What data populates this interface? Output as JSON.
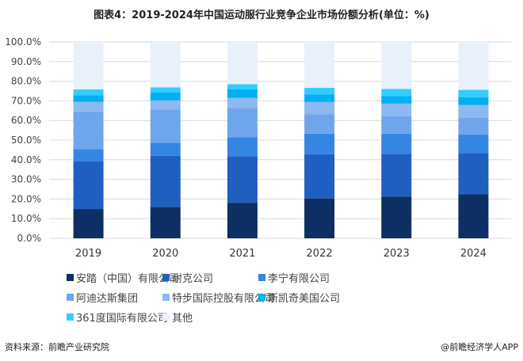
{
  "chart_data": {
    "type": "bar",
    "stacked": true,
    "title": "图表4：2019-2024年中国运动服行业竞争企业市场份额分析(单位：%)",
    "xlabel": "",
    "ylabel": "",
    "ylim": [
      0,
      100
    ],
    "yticks": [
      "0.0%",
      "10.0%",
      "20.0%",
      "30.0%",
      "40.0%",
      "50.0%",
      "60.0%",
      "70.0%",
      "80.0%",
      "90.0%",
      "100.0%"
    ],
    "grid": true,
    "legend_position": "bottom",
    "categories": [
      "2019",
      "2020",
      "2021",
      "2022",
      "2023",
      "2024"
    ],
    "series": [
      {
        "name": "安踏（中国）有限公司",
        "color": "#0d2f63",
        "values": [
          14.9,
          16.0,
          18.1,
          20.3,
          21.2,
          22.4
        ]
      },
      {
        "name": "耐克公司",
        "color": "#1e5fbf",
        "values": [
          24.2,
          26.0,
          23.6,
          22.5,
          21.8,
          21.0
        ]
      },
      {
        "name": "李宁有限公司",
        "color": "#3585e3",
        "values": [
          6.3,
          6.7,
          9.7,
          10.5,
          10.3,
          9.4
        ]
      },
      {
        "name": "阿迪达斯集团",
        "color": "#6fa6eb",
        "values": [
          19.2,
          16.8,
          15.0,
          9.8,
          8.8,
          8.5
        ]
      },
      {
        "name": "特步国际控股有限公司",
        "color": "#8db8f1",
        "values": [
          4.9,
          4.7,
          5.1,
          6.3,
          6.5,
          6.6
        ]
      },
      {
        "name": "斯凯奇美国公司",
        "color": "#00b0f0",
        "values": [
          3.4,
          4.0,
          4.3,
          3.8,
          3.9,
          3.9
        ]
      },
      {
        "name": "361度国际有限公司",
        "color": "#33ccff",
        "values": [
          2.9,
          2.7,
          2.7,
          3.4,
          3.6,
          3.8
        ]
      },
      {
        "name": "其他",
        "color": "#e8f0fb",
        "values": [
          24.2,
          23.1,
          21.5,
          23.4,
          23.9,
          24.4
        ]
      }
    ]
  },
  "footer": {
    "source": "资料来源：前瞻产业研究院",
    "credit": "@前瞻经济学人APP"
  }
}
